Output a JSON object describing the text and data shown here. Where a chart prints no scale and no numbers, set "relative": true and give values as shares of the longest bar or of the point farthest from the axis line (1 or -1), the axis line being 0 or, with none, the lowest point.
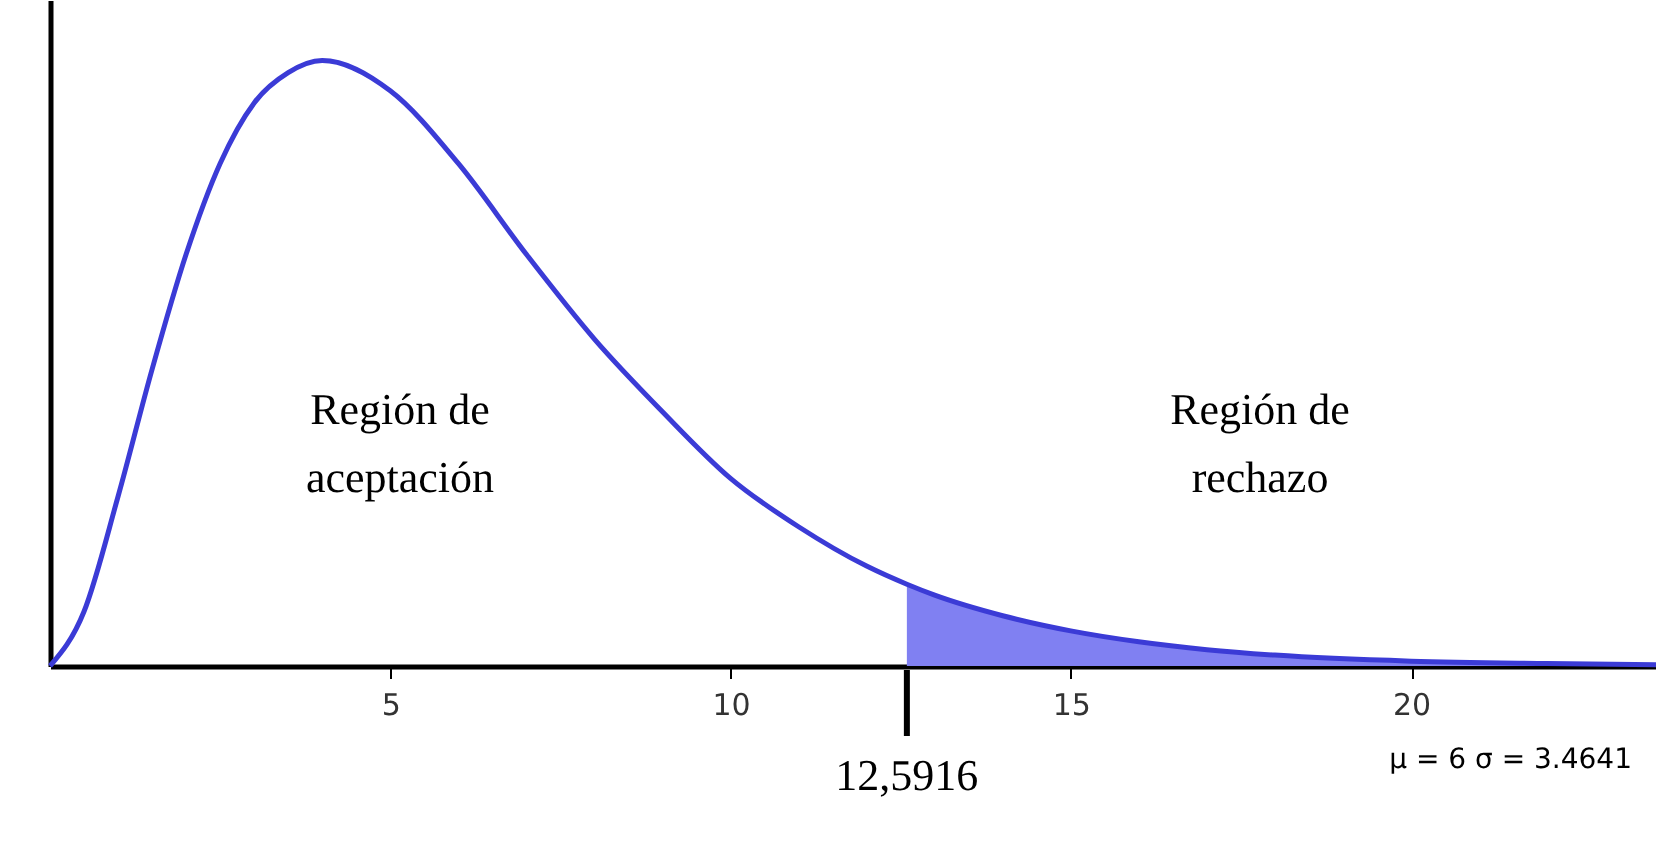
{
  "chart_data": {
    "type": "line",
    "relative": true,
    "tick_labels": "x",
    "x": [
      0,
      0.5,
      1,
      1.5,
      2,
      2.5,
      3,
      3.5,
      4,
      5,
      6,
      7,
      8,
      9,
      10,
      11,
      12,
      12.5916,
      13,
      14,
      15,
      16,
      17,
      18,
      20,
      22,
      23.6
    ],
    "series": [
      {
        "color": "#3b3bd6",
        "values": [
          0,
          0.09,
          0.28,
          0.49,
          0.68,
          0.83,
          0.93,
          0.98,
          1,
          0.95,
          0.83,
          0.68,
          0.54,
          0.42,
          0.31,
          0.23,
          0.165,
          0.135,
          0.117,
          0.083,
          0.058,
          0.04,
          0.027,
          0.018,
          0.008,
          0.004,
          0.002
        ]
      },
      {
        "type": "area",
        "color": "#8080f2",
        "x": [
          12.5916,
          13,
          14,
          15,
          16,
          17,
          18,
          20,
          22,
          23.6
        ],
        "values": [
          0.135,
          0.117,
          0.083,
          0.058,
          0.04,
          0.027,
          0.018,
          0.008,
          0.004,
          0.002
        ]
      }
    ],
    "xlim": [
      0,
      23.6
    ],
    "xticks": [
      5,
      10,
      15,
      20
    ],
    "grid": false,
    "ref_lines": [
      {
        "axis": "x",
        "value": 12.5916,
        "label": "12,5916",
        "color": "#000000"
      }
    ],
    "annotations": [
      "Región de aceptación",
      "Región de rechazo",
      "μ = 6   σ = 3.4641"
    ]
  }
}
